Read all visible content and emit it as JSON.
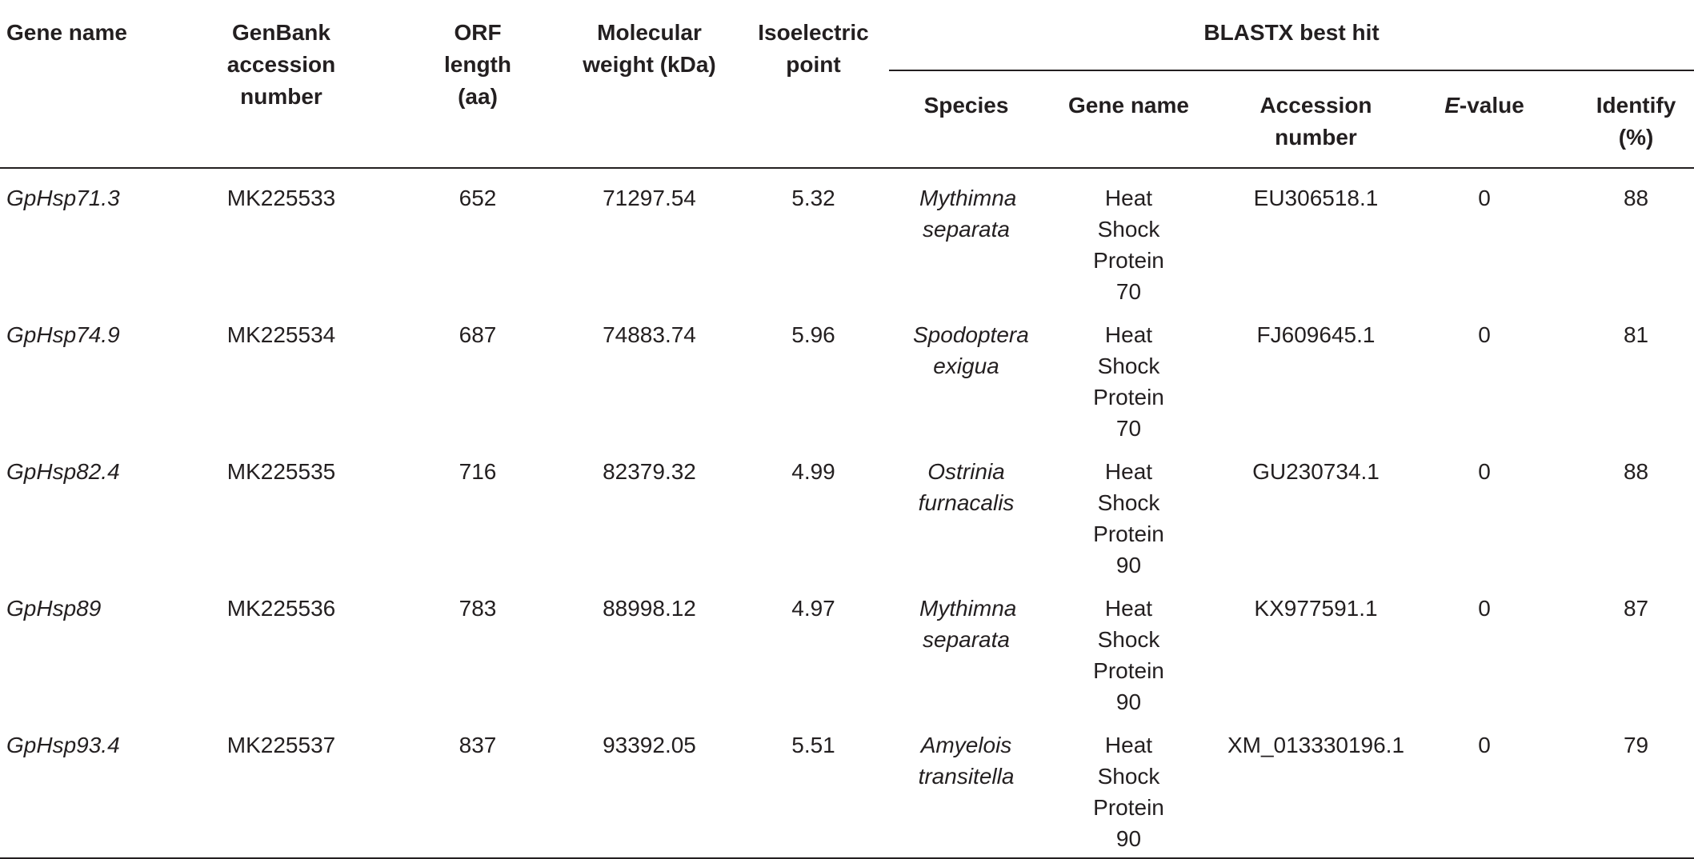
{
  "table": {
    "headers": {
      "gene_name": "Gene name",
      "genbank": "GenBank accession number",
      "orf_length": "ORF length (aa)",
      "mol_weight": "Molecular weight (kDa)",
      "isoelectric": "Isoelectric point",
      "blastx": "BLASTX best hit",
      "species": "Species",
      "hit_gene_name": "Gene name",
      "accession": "Accession number",
      "evalue_italic": "E",
      "evalue_rest": "-value",
      "identify": "Identify (%)"
    },
    "rows": [
      {
        "gene": "GpHsp71.3",
        "genbank": "MK225533",
        "orf": "652",
        "mw": "71297.54",
        "pi": "5.32",
        "species": "Mythimna separata",
        "hit": "Heat Shock Protein 70",
        "acc": "EU306518.1",
        "evalue": "0",
        "identify": "88"
      },
      {
        "gene": "GpHsp74.9",
        "genbank": "MK225534",
        "orf": "687",
        "mw": "74883.74",
        "pi": "5.96",
        "species": "Spodoptera exigua",
        "hit": "Heat Shock Protein 70",
        "acc": "FJ609645.1",
        "evalue": "0",
        "identify": "81"
      },
      {
        "gene": "GpHsp82.4",
        "genbank": "MK225535",
        "orf": "716",
        "mw": "82379.32",
        "pi": "4.99",
        "species": "Ostrinia furnacalis",
        "hit": "Heat Shock Protein 90",
        "acc": "GU230734.1",
        "evalue": "0",
        "identify": "88"
      },
      {
        "gene": "GpHsp89",
        "genbank": "MK225536",
        "orf": "783",
        "mw": "88998.12",
        "pi": "4.97",
        "species": "Mythimna separata",
        "hit": "Heat Shock Protein 90",
        "acc": "KX977591.1",
        "evalue": "0",
        "identify": "87"
      },
      {
        "gene": "GpHsp93.4",
        "genbank": "MK225537",
        "orf": "837",
        "mw": "93392.05",
        "pi": "5.51",
        "species": "Amyelois transitella",
        "hit": "Heat Shock Protein 90",
        "acc": "XM_013330196.1",
        "evalue": "0",
        "identify": "79"
      }
    ]
  }
}
